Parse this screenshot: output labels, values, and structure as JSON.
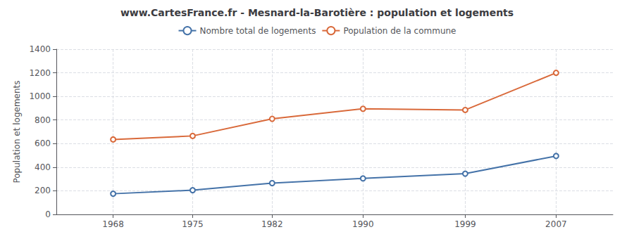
{
  "chart_data": {
    "type": "line",
    "title": "www.CartesFrance.fr - Mesnard-la-Barotière : population et logements",
    "ylabel": "Population et logements",
    "x": [
      1968,
      1975,
      1982,
      1990,
      1999,
      2007
    ],
    "series": [
      {
        "name": "Nombre total de logements",
        "color": "#4472a8",
        "marker": "circle",
        "values": [
          175,
          205,
          265,
          305,
          345,
          495
        ]
      },
      {
        "name": "Population de la commune",
        "color": "#d9693a",
        "marker": "circle",
        "values": [
          635,
          665,
          810,
          895,
          885,
          1200
        ]
      }
    ],
    "xlim": [
      1963,
      2012
    ],
    "xticks": [
      1968,
      1975,
      1982,
      1990,
      1999,
      2007
    ],
    "ylim": [
      0,
      1400
    ],
    "yticks": [
      0,
      200,
      400,
      600,
      800,
      1000,
      1200,
      1400
    ],
    "grid": true,
    "legend": "top"
  }
}
